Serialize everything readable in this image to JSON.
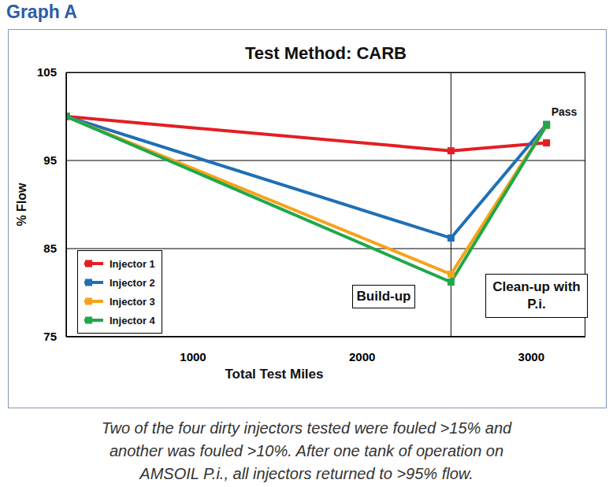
{
  "chart_data": {
    "type": "line",
    "header": "Graph A",
    "title": "Test Method: CARB",
    "x_label": "Total Test Miles",
    "y_label": "% Flow",
    "x": [
      250,
      2525,
      3090
    ],
    "series": [
      {
        "name": "Injector 1",
        "color": "#e31e24",
        "marker": "square",
        "line_style": "solid",
        "values": [
          100,
          96.1,
          97
        ]
      },
      {
        "name": "Injector 2",
        "color": "#1f6fb5",
        "marker": "square",
        "line_style": "solid",
        "values": [
          100,
          86.2,
          99.1
        ]
      },
      {
        "name": "Injector 3",
        "color": "#f7a21b",
        "marker": "square",
        "line_style": "solid",
        "values": [
          100,
          82.1,
          99
        ]
      },
      {
        "name": "Injector 4",
        "color": "#1fa84a",
        "marker": "square",
        "line_style": "solid",
        "values": [
          100,
          81.2,
          99
        ]
      }
    ],
    "xlim": [
      250,
      3320
    ],
    "xticks": [
      1000,
      2000,
      3000
    ],
    "ylim": [
      75,
      105
    ],
    "yticks": [
      75,
      85,
      95,
      105
    ],
    "grid": true,
    "legend": "lower left",
    "divider_x": 2525,
    "annotations": [
      "Build-up",
      "Clean-up with P.i.",
      "Pass"
    ],
    "caption": [
      "Two of the four dirty injectors tested were fouled >15% and",
      "another was fouled >10%. After one tank of operation on",
      "AMSOIL P.i., all injectors returned to >95% flow."
    ]
  }
}
